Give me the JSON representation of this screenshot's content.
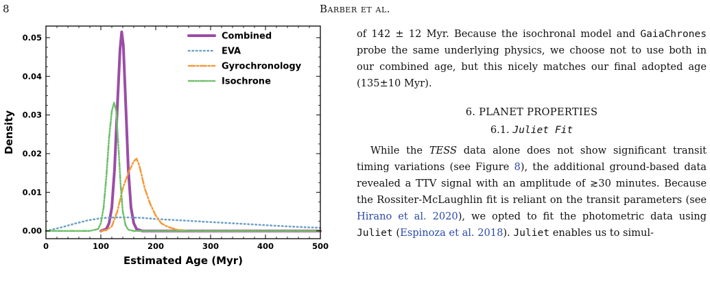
{
  "header": {
    "page_number": "8",
    "running_head": "Barber et al."
  },
  "right_column": {
    "p1": {
      "t1": "of 142 ± 12 Myr.  Because the isochronal model and ",
      "code": "GaiaChrones",
      "t2": " probe the same underlying physics, we choose not to use both in our combined age, but this nicely matches our final adopted age (135±10 Myr)."
    },
    "section": "6.  PLANET PROPERTIES",
    "subsection_number": "6.1. ",
    "subsection_name": "Juliet Fit",
    "p2": {
      "t1": "While the ",
      "tess": "TESS",
      "t2": " data alone does not show significant transit timing variations (see Figure ",
      "fig": "8",
      "t3": "), the additional ground-based data revealed a TTV signal with an amplitude of ≳30 minutes. Because the Rossiter-McLaughlin fit is reliant on the transit parameters (see ",
      "cite1": "Hirano et al. 2020",
      "t4": "), we opted to fit the photometric data using ",
      "code1": "Juliet",
      "t5": " (",
      "cite2": "Espinoza et al. 2018",
      "t6": ").  ",
      "code2": "Juliet",
      "t7": " enables us to simul-"
    }
  },
  "chart_data": {
    "type": "line",
    "xlabel": "Estimated Age (Myr)",
    "ylabel": "Density",
    "xlim": [
      0,
      500
    ],
    "ylim": [
      -0.002,
      0.053
    ],
    "xticks": [
      0,
      100,
      200,
      300,
      400,
      500
    ],
    "yticks": [
      0.0,
      0.01,
      0.02,
      0.03,
      0.04,
      0.05
    ],
    "ytick_labels": [
      "0.00",
      "0.01",
      "0.02",
      "0.03",
      "0.04",
      "0.05"
    ],
    "legend_position": "top-right",
    "grid": false,
    "series": [
      {
        "name": "Combined",
        "color": "#9b4da6",
        "style": "solid",
        "x": [
          100,
          110,
          115,
          120,
          125,
          130,
          135,
          138,
          141,
          145,
          150,
          155,
          160,
          165,
          175,
          500
        ],
        "y": [
          0.0,
          0.0005,
          0.002,
          0.006,
          0.016,
          0.032,
          0.047,
          0.0515,
          0.048,
          0.034,
          0.016,
          0.006,
          0.002,
          0.0005,
          0.0,
          0.0
        ]
      },
      {
        "name": "EVA",
        "color": "#6fa1c8",
        "style": "dotted",
        "x": [
          0,
          25,
          50,
          75,
          100,
          125,
          150,
          175,
          200,
          250,
          300,
          350,
          400,
          450,
          500
        ],
        "y": [
          0.0,
          0.0008,
          0.0018,
          0.0027,
          0.0033,
          0.0035,
          0.0035,
          0.0034,
          0.0031,
          0.0027,
          0.0023,
          0.0019,
          0.0015,
          0.0011,
          0.0008
        ]
      },
      {
        "name": "Gyrochronology",
        "color": "#f59a3a",
        "style": "dashdot",
        "x": [
          100,
          110,
          120,
          130,
          140,
          145,
          150,
          155,
          160,
          165,
          170,
          175,
          180,
          190,
          200,
          210,
          220,
          230,
          240,
          260,
          500
        ],
        "y": [
          0.0,
          0.0002,
          0.0012,
          0.005,
          0.011,
          0.013,
          0.015,
          0.0165,
          0.018,
          0.0187,
          0.017,
          0.014,
          0.011,
          0.007,
          0.004,
          0.002,
          0.0012,
          0.0007,
          0.0003,
          0.0,
          0.0
        ]
      },
      {
        "name": "Isochrone",
        "color": "#6fc06a",
        "style": "dashdotdot",
        "x": [
          0,
          80,
          95,
          100,
          105,
          110,
          115,
          120,
          124,
          128,
          132,
          136,
          140,
          145,
          150,
          160,
          500
        ],
        "y": [
          0.0,
          0.0,
          0.0005,
          0.002,
          0.006,
          0.014,
          0.024,
          0.031,
          0.0332,
          0.031,
          0.022,
          0.012,
          0.005,
          0.0015,
          0.0003,
          0.0,
          0.0
        ]
      }
    ]
  }
}
